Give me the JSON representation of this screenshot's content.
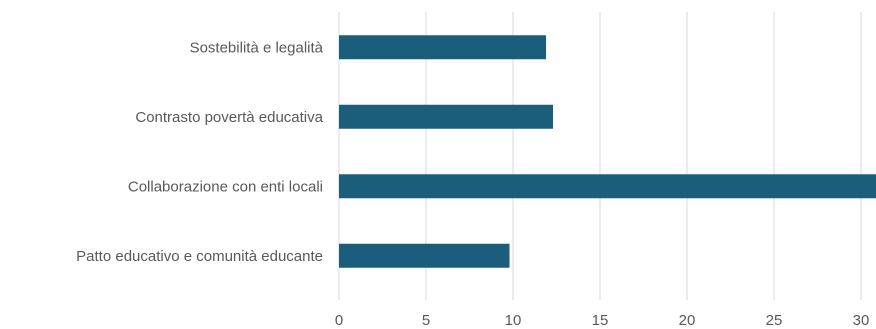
{
  "chart_data": {
    "type": "bar",
    "orientation": "horizontal",
    "categories": [
      "Sostebilità e legalità",
      "Contrasto povertà educativa",
      "Collaborazione con enti locali",
      "Patto educativo e comunità educante"
    ],
    "values": [
      11.9,
      12.3,
      31.5,
      9.8
    ],
    "xlim": [
      0,
      30
    ],
    "xticks": [
      "0",
      "5",
      "10",
      "15",
      "20",
      "25",
      "30"
    ],
    "grid": true,
    "bar_color": "#1b5e7b"
  }
}
